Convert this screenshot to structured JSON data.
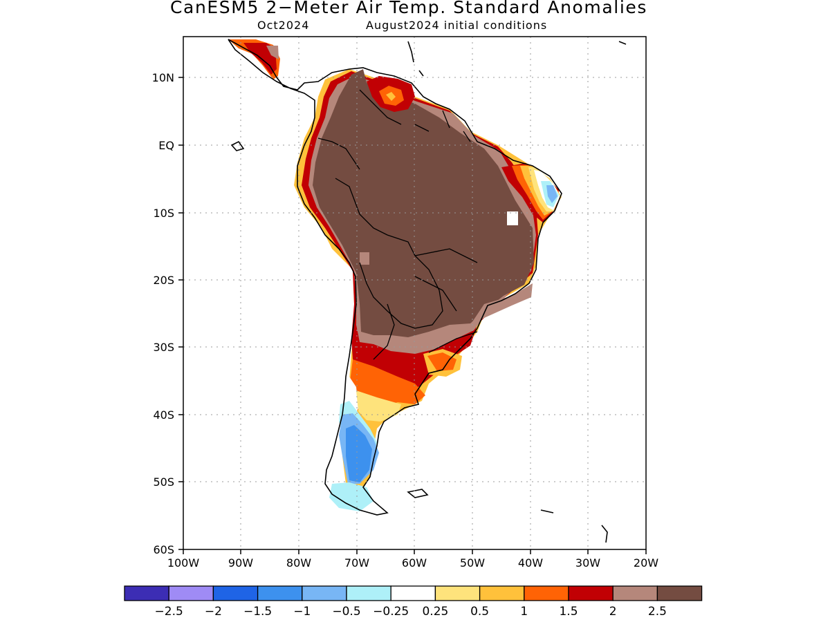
{
  "title": "CanESM5 2−Meter Air Temp. Standard Anomalies",
  "subtitle_left": "Oct2024",
  "subtitle_right": "August2024 initial conditions",
  "map": {
    "region": "South America",
    "lon_range": [
      -100,
      -20
    ],
    "lat_range": [
      -60,
      15
    ],
    "grid": true,
    "lat_ticks": [
      "10N",
      "EQ",
      "10S",
      "20S",
      "30S",
      "40S",
      "50S",
      "60S"
    ],
    "lon_ticks": [
      "100W",
      "90W",
      "80W",
      "70W",
      "60W",
      "50W",
      "40W",
      "30W",
      "20W"
    ]
  },
  "colorbar": {
    "colors": [
      "#3c2db4",
      "#9f8bf5",
      "#1f64e6",
      "#3d91ee",
      "#78b6f5",
      "#aef0f8",
      "#ffffff",
      "#fee37c",
      "#ffc13b",
      "#ff6305",
      "#c10004",
      "#b5877b",
      "#744c41"
    ],
    "labels": [
      "−2.5",
      "−2",
      "−1.5",
      "−1",
      "−0.5",
      "−0.25",
      "0.25",
      "0.5",
      "1",
      "1.5",
      "2",
      "2.5"
    ]
  }
}
